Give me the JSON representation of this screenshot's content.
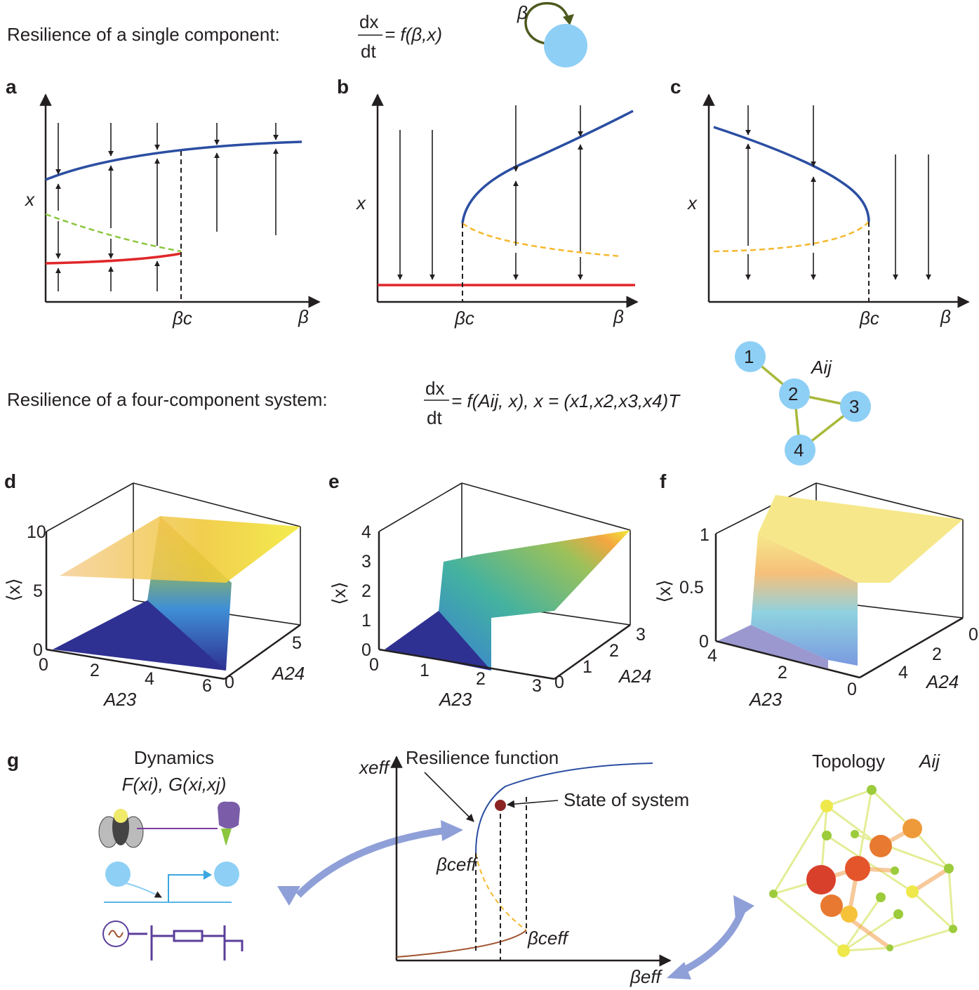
{
  "header_single": "Resilience of a single component:",
  "eq_single": {
    "num": "dx",
    "den": "dt",
    "rhs": "= f(β,x)",
    "beta": "β"
  },
  "header_four": "Resilience of a four-component system:",
  "eq_four": {
    "num": "dx",
    "den": "dt",
    "rhs": "= f(Aij, x), x = (x1,x2,x3,x4)T"
  },
  "network_small": {
    "nodes": [
      "1",
      "2",
      "3",
      "4"
    ],
    "label": "Aij"
  },
  "panels": {
    "a": {
      "label": "a",
      "ylabel": "x",
      "xlabel": "β",
      "critical": "βc"
    },
    "b": {
      "label": "b",
      "ylabel": "x",
      "xlabel": "β",
      "critical": "βc"
    },
    "c": {
      "label": "c",
      "ylabel": "x",
      "xlabel": "β",
      "critical": "βc"
    },
    "d": {
      "label": "d",
      "zlabel": "⟨x⟩",
      "xlabel": "A23",
      "ylabel": "A24",
      "zticks": [
        "10",
        "5",
        "0"
      ],
      "xticks": [
        "0",
        "2",
        "4",
        "6"
      ],
      "yticks": [
        "0",
        "5"
      ]
    },
    "e": {
      "label": "e",
      "zlabel": "⟨x⟩",
      "xlabel": "A23",
      "ylabel": "A24",
      "zticks": [
        "4",
        "3",
        "2",
        "1",
        "0"
      ],
      "xticks": [
        "0",
        "1",
        "2",
        "3"
      ],
      "yticks": [
        "0",
        "1",
        "2",
        "3"
      ]
    },
    "f": {
      "label": "f",
      "zlabel": "⟨x⟩",
      "xlabel": "A23",
      "ylabel": "A24",
      "zticks": [
        "1",
        "0.5",
        "0"
      ],
      "xticks": [
        "4",
        "2",
        "0"
      ],
      "yticks": [
        "4",
        "2",
        "0"
      ]
    },
    "g": {
      "label": "g",
      "dynamics": "Dynamics",
      "dyn_funcs": "F(xi), G(xi,xj)",
      "resilience_function": "Resilience function",
      "state": "State of system",
      "yaxis": "xeff",
      "xaxis": "βeff",
      "critical": "βceff",
      "topology": "Topology",
      "topology_sym": "Aij"
    }
  },
  "colors": {
    "stable_high": "#2b4ea2",
    "stable_low": "#e0262a",
    "unstable_a": "#8cc63f",
    "unstable_bc": "#f5b82e",
    "node": "#8ecff5",
    "edge": "#a8b93a",
    "big_arrow": "#8f9fd8",
    "state_dot": "#8b2323"
  }
}
